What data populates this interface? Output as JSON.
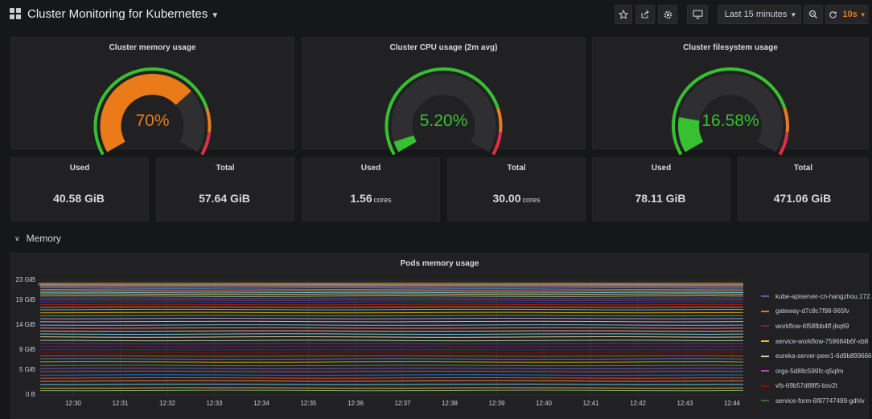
{
  "header": {
    "title": "Cluster Monitoring for Kubernetes",
    "time_range": "Last 15 minutes",
    "refresh": "10s"
  },
  "gauges": [
    {
      "title": "Cluster memory usage",
      "value": 70,
      "display": "70%",
      "color": "#eb7b18"
    },
    {
      "title": "Cluster CPU usage (2m avg)",
      "value": 5.2,
      "display": "5.20%",
      "color": "#37c030"
    },
    {
      "title": "Cluster filesystem usage",
      "value": 16.58,
      "display": "16.58%",
      "color": "#37c030"
    }
  ],
  "stats": [
    {
      "title": "Used",
      "value": "40.58 GiB",
      "unit": ""
    },
    {
      "title": "Total",
      "value": "57.64 GiB",
      "unit": ""
    },
    {
      "title": "Used",
      "value": "1.56",
      "unit": "cores"
    },
    {
      "title": "Total",
      "value": "30.00",
      "unit": "cores"
    },
    {
      "title": "Used",
      "value": "78.11 GiB",
      "unit": ""
    },
    {
      "title": "Total",
      "value": "471.06 GiB",
      "unit": ""
    }
  ],
  "row": {
    "title": "Memory"
  },
  "graph": {
    "title": "Pods memory usage",
    "y_ticks": [
      "23 GiB",
      "19 GiB",
      "14 GiB",
      "9 GiB",
      "5 GiB",
      "0 B"
    ],
    "x_ticks": [
      "12:30",
      "12:31",
      "12:32",
      "12:33",
      "12:34",
      "12:35",
      "12:36",
      "12:37",
      "12:38",
      "12:39",
      "12:40",
      "12:41",
      "12:42",
      "12:43",
      "12:44"
    ],
    "legend": [
      {
        "name": "kube-apiserver-cn-hangzhou.172.",
        "color": "#5d5ab0"
      },
      {
        "name": "gateway-d7c8c7f98-965fv",
        "color": "#e0752d"
      },
      {
        "name": "workflow-6f58fbb4ff-jbq69",
        "color": "#6d1f62"
      },
      {
        "name": "service-workflow-759684b6f-xb8",
        "color": "#eab839"
      },
      {
        "name": "eureka-server-peer1-6d9b899666",
        "color": "#b7dbab"
      },
      {
        "name": "orgs-5d88c599fc-q5qfm",
        "color": "#ba43a9"
      },
      {
        "name": "vfs-69b57d88f5-bsv2t",
        "color": "#890f02"
      },
      {
        "name": "service-form-6f87747499-gdhlv",
        "color": "#3f6833"
      }
    ]
  },
  "chart_data": {
    "type": "line",
    "title": "Pods memory usage",
    "x": [
      "12:30",
      "12:31",
      "12:32",
      "12:33",
      "12:34",
      "12:35",
      "12:36",
      "12:37",
      "12:38",
      "12:39",
      "12:40",
      "12:41",
      "12:42",
      "12:43",
      "12:44"
    ],
    "y_unit": "GiB",
    "ylim": [
      0,
      23
    ],
    "stacked": true,
    "series": [
      {
        "name": "kube-apiserver-cn-hangzhou.172.",
        "color": "#5d5ab0"
      },
      {
        "name": "gateway-d7c8c7f98-965fv",
        "color": "#e0752d"
      },
      {
        "name": "workflow-6f58fbb4ff-jbq69",
        "color": "#6d1f62"
      },
      {
        "name": "service-workflow-759684b6f-xb8",
        "color": "#eab839"
      },
      {
        "name": "eureka-server-peer1-6d9b899666",
        "color": "#b7dbab"
      },
      {
        "name": "orgs-5d88c599fc-q5qfm",
        "color": "#ba43a9"
      },
      {
        "name": "vfs-69b57d88f5-bsv2t",
        "color": "#890f02"
      },
      {
        "name": "service-form-6f87747499-gdhlv",
        "color": "#3f6833"
      }
    ],
    "stack_levels": [
      0.9,
      1.4,
      2.1,
      2.8,
      3.4,
      4.0,
      4.7,
      5.3,
      5.9,
      6.6,
      7.2,
      7.8,
      8.5,
      9.1,
      9.7,
      10.3,
      10.9,
      11.6,
      12.2,
      12.8,
      13.4,
      14.0,
      14.7,
      15.3,
      15.9,
      16.5,
      17.1,
      17.6,
      18.1,
      18.6,
      19.0,
      19.4,
      19.8,
      20.2,
      20.5,
      20.8,
      21.1,
      21.4,
      21.7,
      22.0,
      22.2
    ],
    "line_colors": [
      "#7eb26d",
      "#eab839",
      "#6ed0e0",
      "#ef843c",
      "#e24d42",
      "#1f78c1",
      "#ba43a9",
      "#705da0",
      "#508642",
      "#cca300",
      "#447ebc",
      "#c15c17",
      "#890f02",
      "#0a437c",
      "#6d1f62",
      "#584477",
      "#b7dbab",
      "#f4d598",
      "#70dbed",
      "#f9ba8f",
      "#f29191",
      "#82b5d8",
      "#e5a8e2",
      "#aea2e0",
      "#629e51",
      "#e5ac0e",
      "#64b0c8",
      "#e0752d",
      "#bf1b00",
      "#0a50a1",
      "#962d82",
      "#614d93",
      "#9ac48a",
      "#f2c96d",
      "#65c5db",
      "#f9934e",
      "#ea6460",
      "#5195ce",
      "#d683ce",
      "#806eb7",
      "#3f6833"
    ]
  }
}
